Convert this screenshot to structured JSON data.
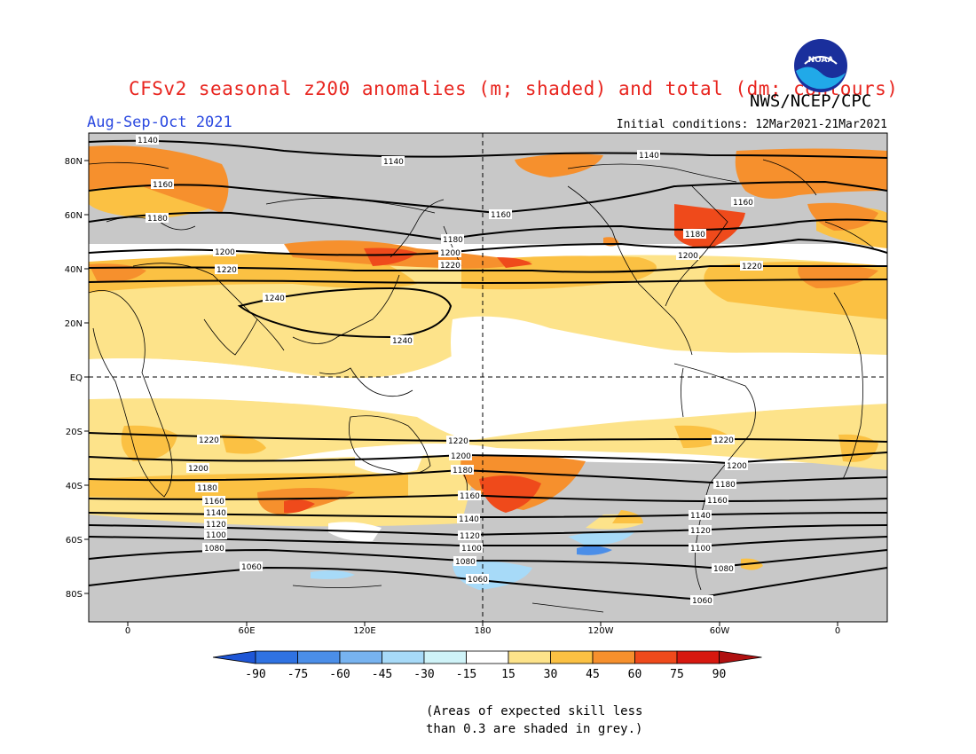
{
  "title": "CFSv2 seasonal z200 anomalies (m; shaded) and total (dm; contours)",
  "agency": "NWS/NCEP/CPC",
  "season": "Aug-Sep-Oct 2021",
  "initial_conditions": "Initial conditions: 12Mar2021-21Mar2021",
  "logo_text": "NOAA",
  "latitude_ticks": [
    "80N",
    "60N",
    "40N",
    "20N",
    "EQ",
    "20S",
    "40S",
    "60S",
    "80S"
  ],
  "longitude_ticks": [
    "0",
    "60E",
    "120E",
    "180",
    "120W",
    "60W",
    "0"
  ],
  "colorbar": {
    "labels": [
      "-90",
      "-75",
      "-60",
      "-45",
      "-30",
      "-15",
      "15",
      "30",
      "45",
      "60",
      "75",
      "90"
    ],
    "colors": [
      "#1e56d6",
      "#2f72e2",
      "#4b8ee8",
      "#77b3f0",
      "#a7daf8",
      "#cff3f8",
      "#ffffff",
      "#fde38a",
      "#fbc143",
      "#f6902d",
      "#ef4a1b",
      "#d7180f",
      "#b01010"
    ]
  },
  "grey_color": "#c8c8c8",
  "note": [
    "(Areas of expected skill less",
    "than 0.3 are shaded in grey.)"
  ],
  "contour_labels": {
    "nh": [
      "1140",
      "1160",
      "1180",
      "1200",
      "1220",
      "1240"
    ],
    "sh": [
      "1220",
      "1200",
      "1180",
      "1160",
      "1140",
      "1120",
      "1100",
      "1080",
      "1060"
    ]
  }
}
